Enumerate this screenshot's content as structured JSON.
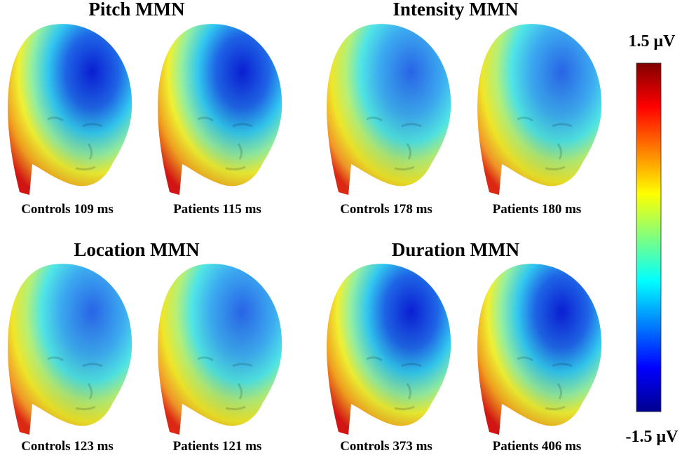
{
  "panels": [
    {
      "title": "Pitch MMN",
      "heads": [
        {
          "label": "Controls 109 ms"
        },
        {
          "label": "Patients 115 ms"
        }
      ]
    },
    {
      "title": "Intensity MMN",
      "heads": [
        {
          "label": "Controls 178 ms"
        },
        {
          "label": "Patients 180 ms"
        }
      ]
    },
    {
      "title": "Location MMN",
      "heads": [
        {
          "label": "Controls 123 ms"
        },
        {
          "label": "Patients 121 ms"
        }
      ]
    },
    {
      "title": "Duration MMN",
      "heads": [
        {
          "label": "Controls 373 ms"
        },
        {
          "label": "Patients 406 ms"
        }
      ]
    }
  ],
  "colorbar": {
    "max_label": "1.5 μV",
    "min_label": "-1.5 μV"
  }
}
